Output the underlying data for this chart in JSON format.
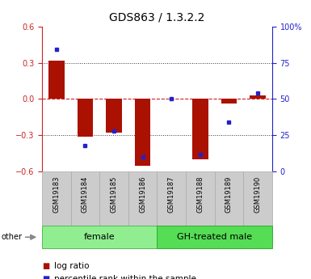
{
  "title": "GDS863 / 1.3.2.2",
  "samples": [
    "GSM19183",
    "GSM19184",
    "GSM19185",
    "GSM19186",
    "GSM19187",
    "GSM19188",
    "GSM19189",
    "GSM19190"
  ],
  "log_ratios": [
    0.32,
    -0.31,
    -0.28,
    -0.55,
    0.0,
    -0.5,
    -0.04,
    0.03
  ],
  "percentile_ranks": [
    0.84,
    0.18,
    0.28,
    0.1,
    0.5,
    0.12,
    0.34,
    0.54
  ],
  "groups": [
    {
      "label": "female",
      "start": 0,
      "end": 3,
      "color": "#90ee90",
      "edge": "#55bb55"
    },
    {
      "label": "GH-treated male",
      "start": 4,
      "end": 7,
      "color": "#55dd55",
      "edge": "#33aa33"
    }
  ],
  "ylim": [
    -0.6,
    0.6
  ],
  "yticks": [
    -0.6,
    -0.3,
    0.0,
    0.3,
    0.6
  ],
  "right_ytick_pcts": [
    0,
    25,
    50,
    75,
    100
  ],
  "right_ylabels": [
    "0",
    "25",
    "50",
    "75",
    "100%"
  ],
  "bar_color": "#aa1100",
  "dot_color": "#2222cc",
  "hline_color": "#cc2222",
  "grid_color": "#333333",
  "title_fontsize": 10,
  "tick_fontsize": 7,
  "legend_fontsize": 7.5,
  "group_fontsize": 8,
  "sample_fontsize": 6
}
